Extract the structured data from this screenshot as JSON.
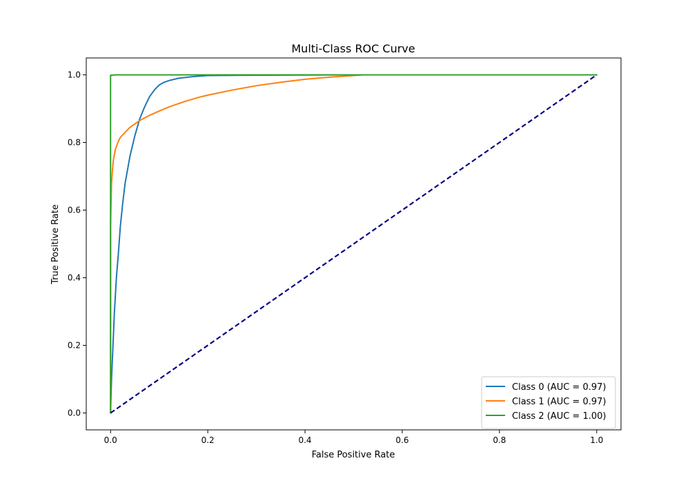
{
  "chart_data": {
    "type": "line",
    "title": "Multi-Class ROC Curve",
    "xlabel": "False Positive Rate",
    "ylabel": "True Positive Rate",
    "xlim": [
      -0.05,
      1.05
    ],
    "ylim": [
      -0.05,
      1.05
    ],
    "xticks": [
      "0.0",
      "0.2",
      "0.4",
      "0.6",
      "0.8",
      "1.0"
    ],
    "yticks": [
      "0.0",
      "0.2",
      "0.4",
      "0.6",
      "0.8",
      "1.0"
    ],
    "grid": false,
    "legend_position": "lower right",
    "series": [
      {
        "name": "Class 0 (AUC = 0.97)",
        "color": "#1f77b4",
        "x": [
          0,
          0.002,
          0.005,
          0.008,
          0.012,
          0.016,
          0.02,
          0.025,
          0.03,
          0.035,
          0.04,
          0.05,
          0.06,
          0.07,
          0.08,
          0.09,
          0.1,
          0.11,
          0.12,
          0.14,
          0.17,
          0.2,
          0.3,
          0.5,
          1.0
        ],
        "y": [
          0,
          0.1,
          0.2,
          0.3,
          0.4,
          0.47,
          0.55,
          0.62,
          0.68,
          0.72,
          0.76,
          0.82,
          0.87,
          0.905,
          0.935,
          0.955,
          0.97,
          0.978,
          0.983,
          0.99,
          0.995,
          0.998,
          0.999,
          1.0,
          1.0
        ]
      },
      {
        "name": "Class 1 (AUC = 0.97)",
        "color": "#ff7f0e",
        "x": [
          0,
          0.0,
          0.002,
          0.004,
          0.006,
          0.01,
          0.015,
          0.02,
          0.03,
          0.04,
          0.05,
          0.06,
          0.08,
          0.1,
          0.12,
          0.15,
          0.18,
          0.2,
          0.25,
          0.3,
          0.35,
          0.4,
          0.45,
          0.5,
          0.52,
          1.0
        ],
        "y": [
          0,
          0.55,
          0.68,
          0.72,
          0.75,
          0.78,
          0.8,
          0.815,
          0.83,
          0.845,
          0.855,
          0.865,
          0.88,
          0.893,
          0.905,
          0.92,
          0.933,
          0.94,
          0.955,
          0.968,
          0.978,
          0.987,
          0.993,
          0.998,
          1.0,
          1.0
        ]
      },
      {
        "name": "Class 2 (AUC = 1.00)",
        "color": "#2ca02c",
        "x": [
          0,
          0.0,
          0.001,
          0.01,
          0.02,
          1.0
        ],
        "y": [
          0,
          0.999,
          0.999,
          1.0,
          1.0,
          1.0
        ]
      }
    ],
    "reference_line": {
      "x": [
        0,
        1
      ],
      "y": [
        0,
        1
      ],
      "color": "#000080",
      "style": "dashed"
    }
  }
}
